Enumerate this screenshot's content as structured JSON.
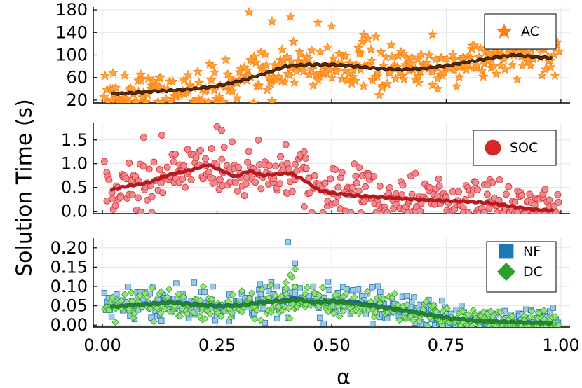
{
  "figure": {
    "ylabel": "Solution Time (s)",
    "xlabel": "α",
    "x_ticks": [
      "0.00",
      "0.25",
      "0.50",
      "0.75",
      "1.00"
    ]
  },
  "chart_data": [
    {
      "type": "scatter",
      "panel": "top",
      "xlabel": "",
      "ylabel": "Solution Time (s)",
      "xlim": [
        -0.02,
        1.02
      ],
      "ylim": [
        15,
        185
      ],
      "y_ticks": [
        "20",
        "60",
        "100",
        "140",
        "180"
      ],
      "x_ticks": [
        0.0,
        0.25,
        0.5,
        0.75,
        1.0
      ],
      "grid": true,
      "legend": "top-right",
      "series": [
        {
          "name": "AC",
          "marker": "star",
          "color": "#ff7f0e",
          "fill": "#ffa33a",
          "trend_color": "#5a2c06",
          "scatter_band": 22,
          "trend": [
            [
              0.02,
              31
            ],
            [
              0.05,
              32
            ],
            [
              0.1,
              35
            ],
            [
              0.15,
              37
            ],
            [
              0.2,
              40
            ],
            [
              0.25,
              45
            ],
            [
              0.3,
              54
            ],
            [
              0.35,
              66
            ],
            [
              0.4,
              80
            ],
            [
              0.45,
              83
            ],
            [
              0.5,
              83
            ],
            [
              0.55,
              80
            ],
            [
              0.6,
              76
            ],
            [
              0.65,
              74
            ],
            [
              0.7,
              76
            ],
            [
              0.75,
              81
            ],
            [
              0.8,
              88
            ],
            [
              0.85,
              95
            ],
            [
              0.9,
              100
            ],
            [
              0.95,
              96
            ],
            [
              0.98,
              95
            ]
          ],
          "outliers": [
            [
              0.32,
              176
            ],
            [
              0.37,
              160
            ],
            [
              0.41,
              168
            ],
            [
              0.47,
              157
            ],
            [
              0.5,
              151
            ],
            [
              0.57,
              136
            ],
            [
              0.63,
              118
            ],
            [
              0.72,
              136
            ],
            [
              0.86,
              138
            ],
            [
              0.33,
              15
            ],
            [
              0.37,
              18
            ]
          ]
        }
      ]
    },
    {
      "type": "scatter",
      "panel": "middle",
      "xlabel": "",
      "ylabel": "",
      "xlim": [
        -0.02,
        1.02
      ],
      "ylim": [
        -0.05,
        1.85
      ],
      "y_ticks": [
        "0.0",
        "0.5",
        "1.0",
        "1.5"
      ],
      "x_ticks": [
        0.0,
        0.25,
        0.5,
        0.75,
        1.0
      ],
      "grid": true,
      "legend": "top-right",
      "series": [
        {
          "name": "SOC",
          "marker": "circle",
          "color": "#d62728",
          "fill": "#f08a91",
          "trend_color": "#b51a1f",
          "scatter_band": 0.3,
          "trend": [
            [
              0.02,
              0.45
            ],
            [
              0.05,
              0.52
            ],
            [
              0.1,
              0.6
            ],
            [
              0.15,
              0.78
            ],
            [
              0.2,
              0.88
            ],
            [
              0.23,
              0.98
            ],
            [
              0.26,
              0.85
            ],
            [
              0.29,
              0.72
            ],
            [
              0.32,
              0.85
            ],
            [
              0.35,
              0.75
            ],
            [
              0.38,
              0.78
            ],
            [
              0.41,
              0.8
            ],
            [
              0.44,
              0.65
            ],
            [
              0.47,
              0.45
            ],
            [
              0.5,
              0.38
            ],
            [
              0.55,
              0.33
            ],
            [
              0.6,
              0.3
            ],
            [
              0.65,
              0.27
            ],
            [
              0.7,
              0.24
            ],
            [
              0.75,
              0.22
            ],
            [
              0.8,
              0.2
            ],
            [
              0.84,
              0.18
            ],
            [
              0.88,
              0.12
            ],
            [
              0.92,
              0.06
            ],
            [
              0.95,
              0.03
            ],
            [
              0.98,
              0.02
            ]
          ],
          "outliers": [
            [
              0.25,
              1.78
            ],
            [
              0.26,
              1.7
            ],
            [
              0.09,
              1.55
            ],
            [
              0.13,
              1.6
            ],
            [
              0.34,
              1.5
            ],
            [
              0.4,
              1.4
            ],
            [
              0.44,
              1.25
            ],
            [
              0.56,
              0.92
            ],
            [
              0.58,
              0.75
            ],
            [
              0.84,
              0.55
            ]
          ]
        }
      ]
    },
    {
      "type": "scatter",
      "panel": "bottom",
      "xlabel": "α",
      "ylabel": "",
      "xlim": [
        -0.02,
        1.02
      ],
      "ylim": [
        -0.005,
        0.225
      ],
      "y_ticks": [
        "0.00",
        "0.05",
        "0.10",
        "0.15",
        "0.20"
      ],
      "x_ticks": [
        0.0,
        0.25,
        0.5,
        0.75,
        1.0
      ],
      "grid": true,
      "legend": "top-right",
      "series": [
        {
          "name": "NF",
          "marker": "square",
          "color": "#1f77b4",
          "fill": "#9ec8e8",
          "trend_color": "#1f5f9a",
          "scatter_band": 0.022,
          "trend": [
            [
              0.02,
              0.048
            ],
            [
              0.1,
              0.055
            ],
            [
              0.15,
              0.06
            ],
            [
              0.2,
              0.055
            ],
            [
              0.25,
              0.05
            ],
            [
              0.3,
              0.052
            ],
            [
              0.35,
              0.06
            ],
            [
              0.4,
              0.065
            ],
            [
              0.42,
              0.072
            ],
            [
              0.45,
              0.06
            ],
            [
              0.5,
              0.063
            ],
            [
              0.55,
              0.06
            ],
            [
              0.6,
              0.05
            ],
            [
              0.65,
              0.04
            ],
            [
              0.7,
              0.03
            ],
            [
              0.75,
              0.02
            ],
            [
              0.8,
              0.013
            ],
            [
              0.85,
              0.01
            ],
            [
              0.9,
              0.008
            ],
            [
              0.95,
              0.006
            ],
            [
              0.98,
              0.005
            ]
          ],
          "outliers": [
            [
              0.405,
              0.215
            ],
            [
              0.42,
              0.16
            ],
            [
              0.2,
              0.11
            ],
            [
              0.38,
              0.1
            ],
            [
              0.46,
              0.1
            ]
          ]
        },
        {
          "name": "DC",
          "marker": "diamond",
          "color": "#2ca02c",
          "fill": "#98e07a",
          "trend_color": "#24842a",
          "scatter_band": 0.02,
          "trend": [
            [
              0.02,
              0.047
            ],
            [
              0.1,
              0.053
            ],
            [
              0.15,
              0.058
            ],
            [
              0.2,
              0.052
            ],
            [
              0.25,
              0.048
            ],
            [
              0.3,
              0.05
            ],
            [
              0.35,
              0.058
            ],
            [
              0.4,
              0.062
            ],
            [
              0.43,
              0.065
            ],
            [
              0.46,
              0.058
            ],
            [
              0.5,
              0.06
            ],
            [
              0.55,
              0.055
            ],
            [
              0.6,
              0.047
            ],
            [
              0.65,
              0.038
            ],
            [
              0.7,
              0.028
            ],
            [
              0.75,
              0.018
            ],
            [
              0.8,
              0.012
            ],
            [
              0.85,
              0.009
            ],
            [
              0.9,
              0.007
            ],
            [
              0.95,
              0.005
            ],
            [
              0.98,
              0.004
            ]
          ],
          "outliers": [
            [
              0.42,
              0.145
            ],
            [
              0.41,
              0.13
            ],
            [
              0.4,
              0.11
            ],
            [
              0.22,
              0.1
            ]
          ]
        }
      ]
    }
  ]
}
